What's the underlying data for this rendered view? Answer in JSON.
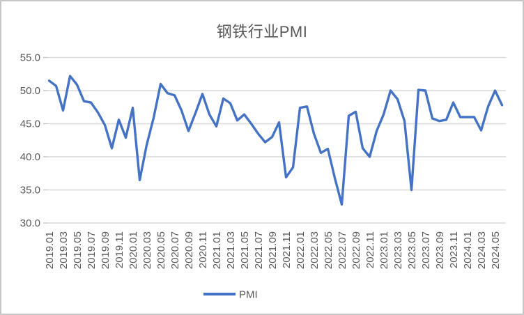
{
  "chart_data": {
    "type": "line",
    "title": "钢铁行业PMI",
    "legend": {
      "position": "bottom",
      "entries": [
        "PMI"
      ]
    },
    "grid": "horizontal",
    "ylim": [
      30.0,
      55.0
    ],
    "ytick_step": 5.0,
    "yticks": [
      "55.0",
      "50.0",
      "45.0",
      "40.0",
      "35.0",
      "30.0"
    ],
    "xtick_labels_shown": [
      "2019.01",
      "2019.03",
      "2019.05",
      "2019.07",
      "2019.09",
      "2019.11",
      "2020.01",
      "2020.03",
      "2020.05",
      "2020.07",
      "2020.09",
      "2020.11",
      "2021.01",
      "2021.03",
      "2021.05",
      "2021.07",
      "2021.09",
      "2021.11",
      "2022.01",
      "2022.03",
      "2022.05",
      "2022.07",
      "2022.09",
      "2022.11",
      "2023.01",
      "2023.03",
      "2023.05",
      "2023.07",
      "2023.09",
      "2023.11",
      "2024.01",
      "2024.03",
      "2024.05"
    ],
    "x_label_rotation_deg": -90,
    "categories": [
      "2019.01",
      "2019.02",
      "2019.03",
      "2019.04",
      "2019.05",
      "2019.06",
      "2019.07",
      "2019.08",
      "2019.09",
      "2019.10",
      "2019.11",
      "2019.12",
      "2020.01",
      "2020.02",
      "2020.03",
      "2020.04",
      "2020.05",
      "2020.06",
      "2020.07",
      "2020.08",
      "2020.09",
      "2020.10",
      "2020.11",
      "2020.12",
      "2021.01",
      "2021.02",
      "2021.03",
      "2021.04",
      "2021.05",
      "2021.06",
      "2021.07",
      "2021.08",
      "2021.09",
      "2021.10",
      "2021.11",
      "2021.12",
      "2022.01",
      "2022.02",
      "2022.03",
      "2022.04",
      "2022.05",
      "2022.06",
      "2022.07",
      "2022.08",
      "2022.09",
      "2022.10",
      "2022.11",
      "2022.12",
      "2023.01",
      "2023.02",
      "2023.03",
      "2023.04",
      "2023.05",
      "2023.06",
      "2023.07",
      "2023.08",
      "2023.09",
      "2023.10",
      "2023.11",
      "2023.12",
      "2024.01",
      "2024.02",
      "2024.03",
      "2024.04",
      "2024.05",
      "2024.06"
    ],
    "series": [
      {
        "name": "PMI",
        "color": "#4472C4",
        "values": [
          51.5,
          50.7,
          47.0,
          52.2,
          50.9,
          48.4,
          48.2,
          46.7,
          44.8,
          41.3,
          45.6,
          42.9,
          47.4,
          36.5,
          41.8,
          45.9,
          51.0,
          49.6,
          49.3,
          47.0,
          43.9,
          46.6,
          49.5,
          46.4,
          44.6,
          48.8,
          48.1,
          45.5,
          46.4,
          45.0,
          43.5,
          42.2,
          43.0,
          45.2,
          36.9,
          38.4,
          47.4,
          47.6,
          43.5,
          40.6,
          41.2,
          36.8,
          32.8,
          46.2,
          46.8,
          41.3,
          40.0,
          43.9,
          46.4,
          50.0,
          48.7,
          45.4,
          35.0,
          50.1,
          50.0,
          45.8,
          45.4,
          45.6,
          48.2,
          46.0,
          46.0,
          46.0,
          44.0,
          47.6,
          50.0,
          47.8
        ]
      }
    ],
    "colors": {
      "line": "#4472C4",
      "text": "#595959",
      "gridline": "#d9d9d9",
      "tick": "#c6c6c6",
      "background": "#ffffff"
    }
  }
}
